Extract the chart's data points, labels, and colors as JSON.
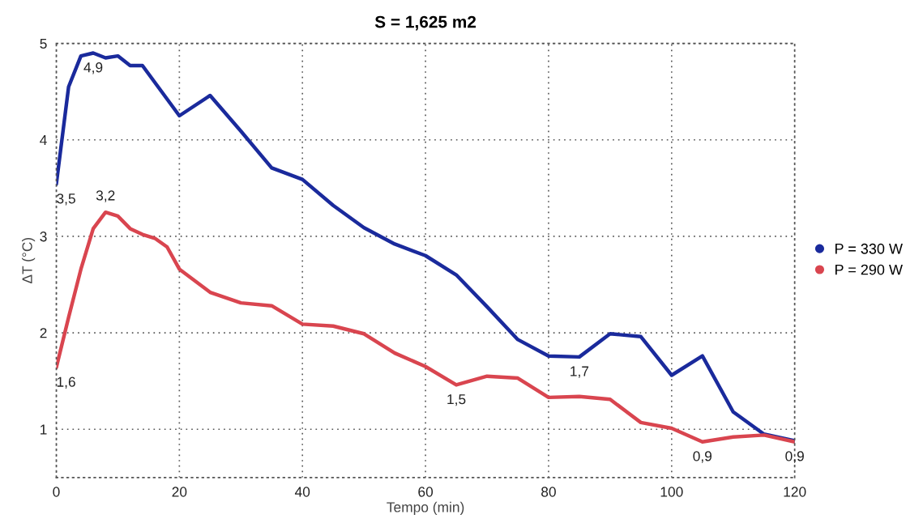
{
  "chart_data": {
    "type": "line",
    "title": "S = 1,625 m2",
    "xlabel": "Tempo (min)",
    "ylabel": "ΔT (°C)",
    "xlim": [
      0,
      120
    ],
    "xticks": [
      0,
      20,
      40,
      60,
      80,
      100,
      120
    ],
    "ylim": [
      0.5,
      5
    ],
    "yticks": [
      1,
      2,
      3,
      4,
      5
    ],
    "grid": true,
    "legend": "right",
    "marker": "none",
    "line_style": "solid",
    "series": [
      {
        "name": "P = 330 W",
        "color": "#1a2a9c",
        "x": [
          0,
          2,
          4,
          6,
          8,
          10,
          12,
          14,
          20,
          25,
          30,
          35,
          40,
          45,
          50,
          55,
          60,
          65,
          70,
          75,
          80,
          85,
          90,
          95,
          100,
          105,
          110,
          115,
          120
        ],
        "values": [
          3.54,
          4.55,
          4.87,
          4.9,
          4.85,
          4.87,
          4.77,
          4.77,
          4.25,
          4.46,
          4.09,
          3.71,
          3.59,
          3.32,
          3.09,
          2.92,
          2.8,
          2.6,
          2.27,
          1.93,
          1.76,
          1.75,
          1.99,
          1.96,
          1.56,
          1.76,
          1.18,
          0.95,
          0.88
        ],
        "value_labels": [
          "3,5",
          null,
          null,
          "4,9",
          null,
          null,
          null,
          null,
          null,
          null,
          null,
          null,
          null,
          null,
          null,
          null,
          null,
          null,
          null,
          null,
          null,
          "1,7",
          null,
          null,
          null,
          null,
          null,
          null,
          null
        ]
      },
      {
        "name": "P = 290 W",
        "color": "#d9454f",
        "x": [
          0,
          2,
          4,
          6,
          8,
          10,
          12,
          14,
          16,
          18,
          20,
          25,
          30,
          35,
          40,
          45,
          50,
          55,
          60,
          65,
          70,
          75,
          80,
          85,
          90,
          95,
          100,
          105,
          110,
          115,
          120
        ],
        "values": [
          1.64,
          2.16,
          2.66,
          3.08,
          3.25,
          3.21,
          3.08,
          3.02,
          2.98,
          2.89,
          2.66,
          2.42,
          2.31,
          2.28,
          2.09,
          2.07,
          1.99,
          1.79,
          1.65,
          1.46,
          1.55,
          1.53,
          1.33,
          1.34,
          1.31,
          1.07,
          1.01,
          0.87,
          0.92,
          0.94,
          0.87
        ],
        "value_labels": [
          "1,6",
          null,
          null,
          null,
          "3,2",
          null,
          null,
          null,
          null,
          null,
          null,
          null,
          null,
          null,
          null,
          null,
          null,
          null,
          null,
          "1,5",
          null,
          null,
          null,
          null,
          null,
          null,
          null,
          "0,9",
          null,
          null,
          "0,9"
        ]
      }
    ]
  }
}
